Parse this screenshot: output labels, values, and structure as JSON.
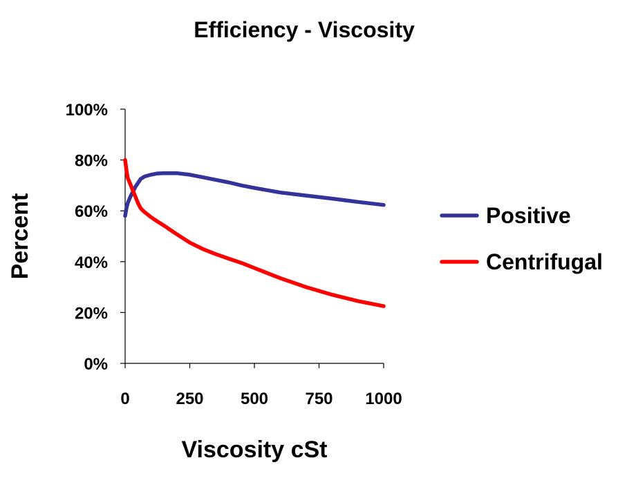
{
  "chart_data": {
    "type": "line",
    "title": "Efficiency - Viscosity",
    "xlabel": "Viscosity cSt",
    "ylabel": "Percent",
    "xlim": [
      0,
      1000
    ],
    "ylim": [
      0,
      100
    ],
    "x_ticks": [
      0,
      250,
      500,
      750,
      1000
    ],
    "x_tick_labels": [
      "0",
      "250",
      "500",
      "750",
      "1000"
    ],
    "y_ticks": [
      0,
      20,
      40,
      60,
      80,
      100
    ],
    "y_tick_labels": [
      "0%",
      "20%",
      "40%",
      "60%",
      "80%",
      "100%"
    ],
    "grid": false,
    "legend_position": "right",
    "series": [
      {
        "name": "Positive",
        "color": "#333399",
        "x": [
          0,
          5,
          10,
          20,
          30,
          40,
          50,
          60,
          75,
          100,
          125,
          150,
          200,
          250,
          300,
          350,
          400,
          450,
          500,
          600,
          700,
          800,
          900,
          1000
        ],
        "y": [
          58,
          61,
          63,
          65.5,
          67.5,
          69.5,
          71,
          72.5,
          73.5,
          74.2,
          74.7,
          74.8,
          74.8,
          74.2,
          73.2,
          72.2,
          71.2,
          70,
          69,
          67.2,
          66,
          64.8,
          63.5,
          62.3
        ]
      },
      {
        "name": "Centrifugal",
        "color": "#ff0000",
        "x": [
          0,
          5,
          10,
          20,
          30,
          40,
          50,
          60,
          75,
          100,
          125,
          150,
          175,
          200,
          250,
          300,
          350,
          400,
          450,
          500,
          600,
          700,
          800,
          900,
          1000
        ],
        "y": [
          80,
          76,
          73,
          70.5,
          68,
          65.5,
          63,
          61,
          59.5,
          57.5,
          55.8,
          54.2,
          52.5,
          50.8,
          47.5,
          45,
          43,
          41.2,
          39.5,
          37.5,
          33.5,
          30,
          27,
          24.5,
          22.5
        ]
      }
    ]
  }
}
